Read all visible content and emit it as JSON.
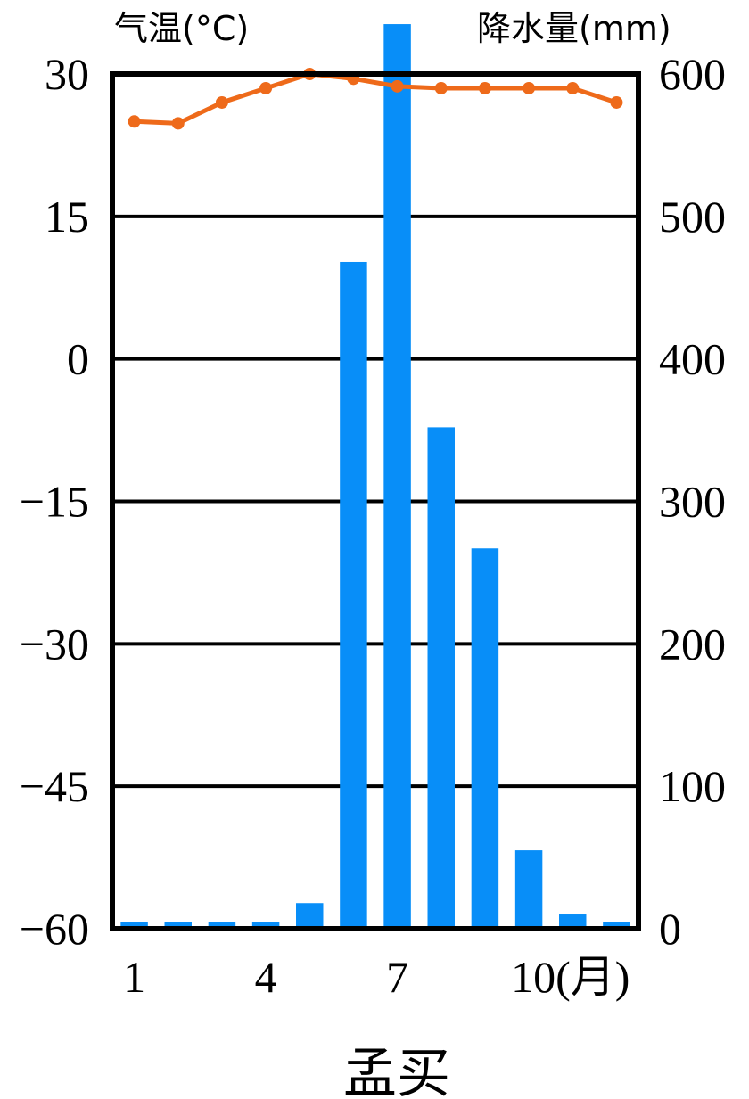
{
  "chart_data": {
    "type": "bar+line",
    "city": "孟买",
    "months": [
      "1",
      "2",
      "3",
      "4",
      "5",
      "6",
      "7",
      "8",
      "9",
      "10",
      "11",
      "12"
    ],
    "x_tick_labels": [
      "1",
      "4",
      "7",
      "10(月)"
    ],
    "temperature": {
      "label": "气温(°C)",
      "unit_label": "气温(°C)",
      "values": [
        25,
        24.8,
        27,
        28.5,
        30,
        29.5,
        28.7,
        28.5,
        28.5,
        28.5,
        28.5,
        27
      ],
      "ylim": [
        -60,
        30
      ],
      "ticks": [
        "30",
        "15",
        "0",
        "−15",
        "−30",
        "−45",
        "−60"
      ],
      "color": "#EE6A1A"
    },
    "precipitation": {
      "label": "降水量(mm)",
      "values": [
        5,
        5,
        5,
        5,
        18,
        468,
        635,
        352,
        267,
        55,
        10,
        5
      ],
      "ylim": [
        0,
        600
      ],
      "ticks": [
        "600",
        "500",
        "400",
        "300",
        "200",
        "100",
        "0"
      ],
      "color": "#088EF8"
    },
    "grid": true
  }
}
